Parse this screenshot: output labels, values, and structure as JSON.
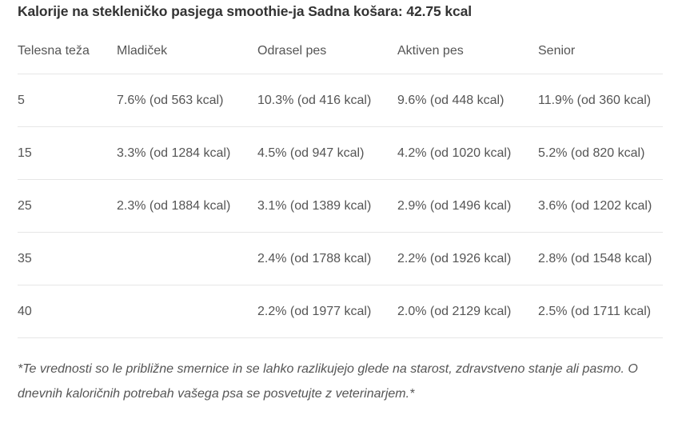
{
  "title": "Kalorije na stekleničko pasjega smoothie-ja Sadna košara: 42.75 kcal",
  "table": {
    "headers": [
      "Telesna teža",
      "Mladiček",
      "Odrasel pes",
      "Aktiven pes",
      "Senior"
    ],
    "rows": [
      [
        "5",
        "7.6% (od 563 kcal)",
        "10.3% (od 416 kcal)",
        "9.6% (od 448 kcal)",
        "11.9% (od 360 kcal)"
      ],
      [
        "15",
        "3.3% (od 1284 kcal)",
        "4.5% (od 947 kcal)",
        "4.2% (od 1020 kcal)",
        "5.2% (od 820 kcal)"
      ],
      [
        "25",
        "2.3% (od 1884 kcal)",
        "3.1% (od 1389 kcal)",
        "2.9% (od 1496 kcal)",
        "3.6% (od 1202 kcal)"
      ],
      [
        "35",
        "",
        "2.4% (od 1788 kcal)",
        "2.2% (od 1926 kcal)",
        "2.8% (od 1548 kcal)"
      ],
      [
        "40",
        "",
        "2.2% (od 1977 kcal)",
        "2.0% (od 2129 kcal)",
        "2.5% (od 1711 kcal)"
      ]
    ]
  },
  "footnote": "*Te vrednosti so le približne smernice in se lahko razlikujejo glede na starost, zdravstveno stanje ali pasmo. O dnevnih kaloričnih potrebah vašega psa se posvetujte z veterinarjem.*"
}
